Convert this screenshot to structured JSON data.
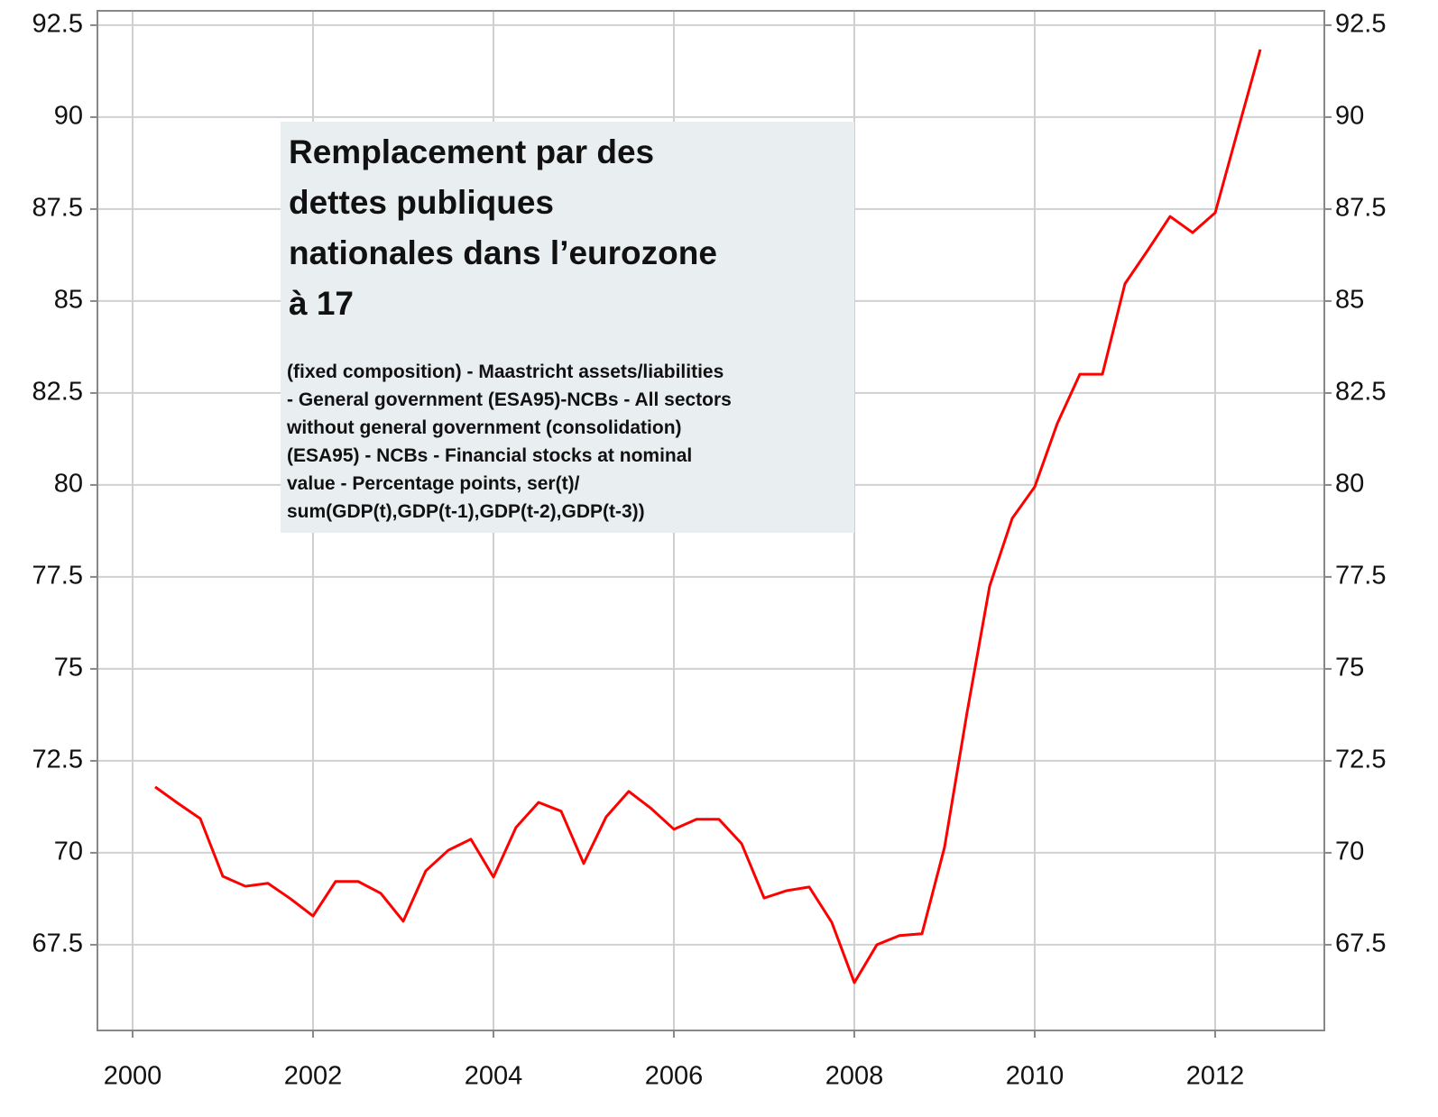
{
  "chart_data": {
    "type": "line",
    "annotation": {
      "title_lines": [
        "Remplacement par  des",
        "dettes publiques",
        "nationales dans l’eurozone",
        "à 17"
      ],
      "text_lines": [
        " (fixed composition) - Maastricht assets/liabilities",
        "- General government (ESA95)-NCBs - All sectors",
        "without general government (consolidation)",
        "(ESA95) - NCBs - Financial stocks at nominal",
        "value - Percentage points, ser(t)/",
        "sum(GDP(t),GDP(t-1),GDP(t-2),GDP(t-3))"
      ]
    },
    "x": [
      2000.25,
      2000.5,
      2000.75,
      2001,
      2001.25,
      2001.5,
      2001.75,
      2002,
      2002.25,
      2002.5,
      2002.75,
      2003,
      2003.25,
      2003.5,
      2003.75,
      2004,
      2004.25,
      2004.5,
      2004.75,
      2005,
      2005.25,
      2005.5,
      2005.75,
      2006,
      2006.25,
      2006.5,
      2006.75,
      2007,
      2007.25,
      2007.5,
      2007.75,
      2008,
      2008.25,
      2008.5,
      2008.75,
      2009,
      2009.25,
      2009.5,
      2009.75,
      2010,
      2010.25,
      2010.5,
      2010.75,
      2011,
      2011.25,
      2011.5,
      2011.75,
      2012,
      2012.25,
      2012.5
    ],
    "series": [
      {
        "color": "#ff0000",
        "values": [
          71.79,
          71.35,
          70.93,
          69.36,
          69.09,
          69.17,
          68.75,
          68.28,
          69.22,
          69.22,
          68.9,
          68.14,
          69.51,
          70.07,
          70.37,
          69.34,
          70.69,
          71.37,
          71.13,
          69.71,
          70.98,
          71.67,
          71.2,
          70.64,
          70.91,
          70.91,
          70.25,
          68.77,
          68.97,
          69.07,
          68.11,
          66.47,
          67.5,
          67.75,
          67.8,
          70.15,
          73.82,
          77.25,
          79.09,
          79.95,
          81.67,
          83.01,
          83.01,
          85.47,
          86.37,
          87.3,
          86.86,
          87.4,
          89.63,
          91.84
        ]
      }
    ],
    "xlim": [
      1999.61,
      2013.21
    ],
    "xticks": [
      2000,
      2002,
      2004,
      2006,
      2008,
      2010,
      2012
    ],
    "ylim": [
      65.17,
      92.89
    ],
    "yticks": [
      67.5,
      70,
      72.5,
      75,
      77.5,
      80,
      82.5,
      85,
      87.5,
      90,
      92.5
    ],
    "y2lim": [
      65.17,
      92.89
    ],
    "y2ticks": [
      67.5,
      70,
      72.5,
      75,
      77.5,
      80,
      82.5,
      85,
      87.5,
      90,
      92.5
    ],
    "grid": true
  }
}
